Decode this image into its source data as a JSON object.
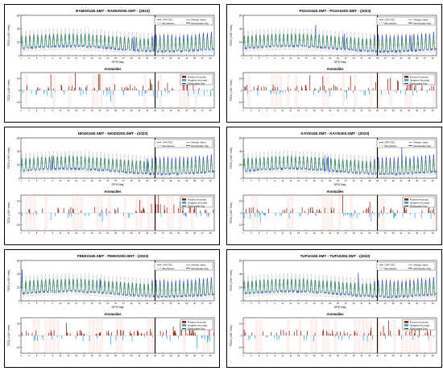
{
  "figure": {
    "panels": [
      {
        "title": "RAMO0160.SMT - RAMO0200.SMT - (2023)"
      },
      {
        "title": "PO2A0160.SMT - PO2A0200.SMT - (2023)"
      },
      {
        "title": "NIGD0160.SMT - NIGD0200.SMT - (2023)"
      },
      {
        "title": "KAYI0160.SMT - KAYI0200.SMT - (2023)"
      },
      {
        "title": "FEEK0160.SMT - FEEK0200.SMT - (2023)"
      },
      {
        "title": "TUF10160.SMT - TUF10200.SMT - (2023)"
      }
    ],
    "common": {
      "xlabel": "GPS Day",
      "ylabel_top": "TECU (×10¹⁶ e/m²)",
      "ylabel_bottom": "TECU (×10¹⁶ e/m²)",
      "anomalies_title": "Anomalies",
      "legend_top": [
        "GPS TEC",
        "Median Value",
        "Boundaries",
        "Earthquake Day"
      ],
      "legend_bottom": [
        "Positive Anomaly",
        "Negative Anomaly",
        "Earthquake Day"
      ],
      "colors": {
        "tec": "#1f2fd6",
        "median": "#2a9d3a",
        "bounds": "#6e6e6e",
        "positive": "#8b1a10",
        "negative": "#2aa3e0",
        "quake": "#000000"
      }
    }
  },
  "chart_data": [
    {
      "type": "line",
      "title": "RAMO0160.SMT - RAMO0200.SMT - (2023)",
      "xlabel": "GPS Day",
      "x_range": [
        1,
        50
      ],
      "earthquake_day": 35,
      "ylim": [
        0,
        60
      ],
      "anomaly_ylim": [
        -15,
        15
      ],
      "grid": false
    },
    {
      "type": "line",
      "title": "PO2A0160.SMT - PO2A0200.SMT - (2023)",
      "xlabel": "GPS Day",
      "x_range": [
        1,
        50
      ],
      "earthquake_day": 35,
      "ylim": [
        0,
        60
      ],
      "anomaly_ylim": [
        -15,
        15
      ],
      "grid": false
    },
    {
      "type": "line",
      "title": "NIGD0160.SMT - NIGD0200.SMT - (2023)",
      "xlabel": "GPS Day",
      "x_range": [
        1,
        50
      ],
      "earthquake_day": 35,
      "ylim": [
        0,
        60
      ],
      "anomaly_ylim": [
        -15,
        15
      ],
      "grid": false
    },
    {
      "type": "line",
      "title": "KAYI0160.SMT - KAYI0200.SMT - (2023)",
      "xlabel": "GPS Day",
      "x_range": [
        1,
        50
      ],
      "earthquake_day": 35,
      "ylim": [
        0,
        60
      ],
      "anomaly_ylim": [
        -15,
        15
      ],
      "grid": false
    },
    {
      "type": "line",
      "title": "FEEK0160.SMT - FEEK0200.SMT - (2023)",
      "xlabel": "GPS Day",
      "x_range": [
        1,
        50
      ],
      "earthquake_day": 35,
      "ylim": [
        0,
        60
      ],
      "anomaly_ylim": [
        -15,
        15
      ],
      "grid": false
    },
    {
      "type": "line",
      "title": "TUF10160.SMT - TUF10200.SMT - (2023)",
      "xlabel": "GPS Day",
      "x_range": [
        1,
        50
      ],
      "earthquake_day": 35,
      "ylim": [
        0,
        60
      ],
      "anomaly_ylim": [
        -15,
        15
      ],
      "grid": false
    }
  ]
}
